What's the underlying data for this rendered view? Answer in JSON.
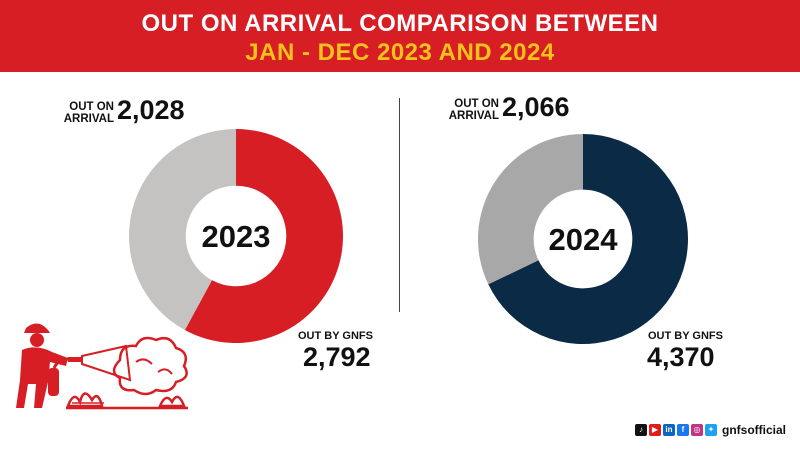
{
  "header": {
    "line1": "OUT ON ARRIVAL COMPARISON BETWEEN",
    "line2": "JAN - DEC 2023 AND 2024"
  },
  "colors": {
    "banner": "#d71e24",
    "accent_yellow": "#f7c21b",
    "red": "#d71e24",
    "navy": "#0b2a45",
    "gray_2023": "#c5c3c2",
    "gray_2024": "#a8a8a8"
  },
  "chart_data": [
    {
      "type": "pie",
      "center_label": "2023",
      "slices": [
        {
          "label_line1": "OUT ON",
          "label_line2": "ARRIVAL",
          "value": 2028,
          "value_text": "2,028",
          "color": "#c5c3c2"
        },
        {
          "label": "OUT BY  GNFS",
          "value": 2792,
          "value_text": "2,792",
          "color": "#d71e24"
        }
      ]
    },
    {
      "type": "pie",
      "center_label": "2024",
      "slices": [
        {
          "label_line1": "OUT ON",
          "label_line2": "ARRIVAL",
          "value": 2066,
          "value_text": "2,066",
          "color": "#a8a8a8"
        },
        {
          "label": "OUT BY  GNFS",
          "value": 4370,
          "value_text": "4,370",
          "color": "#0b2a45"
        }
      ]
    }
  ],
  "footer": {
    "handle": "gnfsofficial",
    "icons": [
      "tiktok-icon",
      "youtube-icon",
      "linkedin-icon",
      "facebook-icon",
      "instagram-icon",
      "twitter-icon"
    ]
  }
}
